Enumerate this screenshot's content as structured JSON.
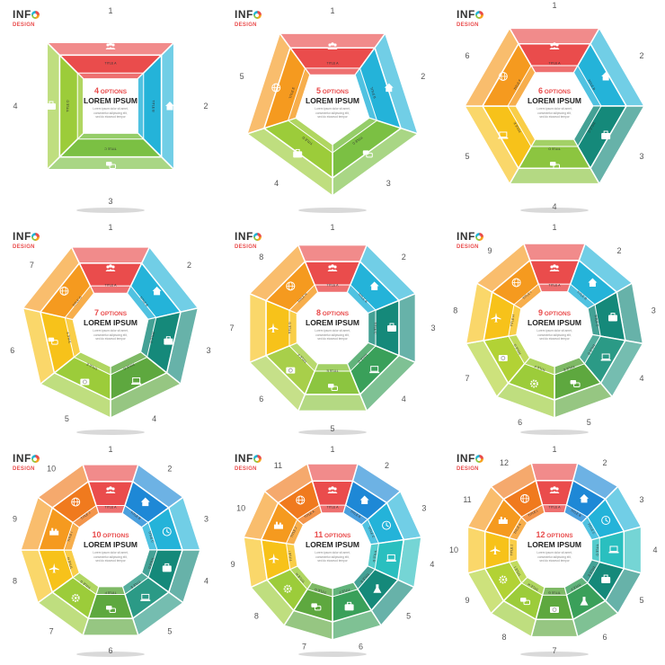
{
  "logo": {
    "info": "INF",
    "design": "DESIGN"
  },
  "options_word": "OPTIONS",
  "heading": "LOREM IPSUM",
  "body_lines": [
    "Lorem ipsum dolor sit amet,",
    "consectetur adipiscing elit,",
    "sed do eiusmod tempor"
  ],
  "titles": [
    "TITLE A",
    "TITLE B",
    "TITLE C",
    "TITLE D",
    "TITLE E",
    "TITLE F",
    "TITLE G",
    "TITLE H",
    "TITLE I",
    "TITLE J",
    "TITLE K",
    "TITLE L"
  ],
  "colors": [
    "#ea4c4c",
    "#24b3d9",
    "#2b9a86",
    "#7bc043",
    "#a8cf4a",
    "#f7c21a",
    "#f59a1f",
    "#f07a1e",
    "#ef5b3a",
    "#1e88d6",
    "#2abfbf",
    "#4aa86b"
  ],
  "icons": [
    "people-icon",
    "home-icon",
    "briefcase-icon",
    "laptop-icon",
    "chat-icon",
    "camera-icon",
    "plane-icon",
    "globe-icon",
    "tree-icon",
    "clock-icon",
    "flask-icon",
    "gear-icon"
  ],
  "charts": [
    {
      "options": "4",
      "colors": [
        "#ea4c4c",
        "#24b3d9",
        "#7bc043",
        "#9ccc3a"
      ],
      "icons": [
        "people-icon",
        "home-icon",
        "chat-icon",
        "briefcase-icon"
      ]
    },
    {
      "options": "5",
      "colors": [
        "#ea4c4c",
        "#24b3d9",
        "#7bc043",
        "#9ccc3a",
        "#f59a1f"
      ],
      "icons": [
        "people-icon",
        "home-icon",
        "chat-icon",
        "briefcase-icon",
        "globe-icon"
      ]
    },
    {
      "options": "6",
      "colors": [
        "#ea4c4c",
        "#24b3d9",
        "#15897a",
        "#8cc540",
        "#f7c21a",
        "#f59a1f"
      ],
      "icons": [
        "people-icon",
        "home-icon",
        "briefcase-icon",
        "chat-icon",
        "laptop-icon",
        "globe-icon"
      ]
    },
    {
      "options": "7",
      "colors": [
        "#ea4c4c",
        "#24b3d9",
        "#15897a",
        "#5ea83f",
        "#9ccc3a",
        "#f7c21a",
        "#f59a1f"
      ],
      "icons": [
        "people-icon",
        "home-icon",
        "briefcase-icon",
        "laptop-icon",
        "camera-icon",
        "chat-icon",
        "globe-icon"
      ]
    },
    {
      "options": "8",
      "colors": [
        "#ea4c4c",
        "#24b3d9",
        "#15897a",
        "#3aa05a",
        "#8cc540",
        "#a8cf4a",
        "#f7c21a",
        "#f59a1f"
      ],
      "icons": [
        "people-icon",
        "home-icon",
        "briefcase-icon",
        "laptop-icon",
        "chat-icon",
        "camera-icon",
        "plane-icon",
        "globe-icon"
      ]
    },
    {
      "options": "9",
      "colors": [
        "#ea4c4c",
        "#24b3d9",
        "#15897a",
        "#2b9a86",
        "#5ea83f",
        "#9ccc3a",
        "#b2d235",
        "#f7c21a",
        "#f59a1f"
      ],
      "icons": [
        "people-icon",
        "home-icon",
        "briefcase-icon",
        "laptop-icon",
        "chat-icon",
        "gear-icon",
        "camera-icon",
        "plane-icon",
        "globe-icon"
      ]
    },
    {
      "options": "10",
      "colors": [
        "#ea4c4c",
        "#1e88d6",
        "#24b3d9",
        "#15897a",
        "#2b9a86",
        "#5ea83f",
        "#9ccc3a",
        "#f7c21a",
        "#f59a1f",
        "#f07a1e"
      ],
      "icons": [
        "people-icon",
        "home-icon",
        "clock-icon",
        "briefcase-icon",
        "laptop-icon",
        "chat-icon",
        "gear-icon",
        "plane-icon",
        "tree-icon",
        "globe-icon"
      ]
    },
    {
      "options": "11",
      "colors": [
        "#ea4c4c",
        "#1e88d6",
        "#24b3d9",
        "#2abfbf",
        "#15897a",
        "#3aa05a",
        "#5ea83f",
        "#9ccc3a",
        "#f7c21a",
        "#f59a1f",
        "#f07a1e"
      ],
      "icons": [
        "people-icon",
        "home-icon",
        "clock-icon",
        "laptop-icon",
        "flask-icon",
        "briefcase-icon",
        "chat-icon",
        "gear-icon",
        "plane-icon",
        "tree-icon",
        "globe-icon"
      ]
    },
    {
      "options": "12",
      "colors": [
        "#ea4c4c",
        "#1e88d6",
        "#24b3d9",
        "#2abfbf",
        "#15897a",
        "#3aa05a",
        "#5ea83f",
        "#9ccc3a",
        "#b2d235",
        "#f7c21a",
        "#f59a1f",
        "#f07a1e"
      ],
      "icons": [
        "people-icon",
        "home-icon",
        "clock-icon",
        "laptop-icon",
        "briefcase-icon",
        "flask-icon",
        "camera-icon",
        "chat-icon",
        "gear-icon",
        "plane-icon",
        "tree-icon",
        "globe-icon"
      ]
    }
  ]
}
